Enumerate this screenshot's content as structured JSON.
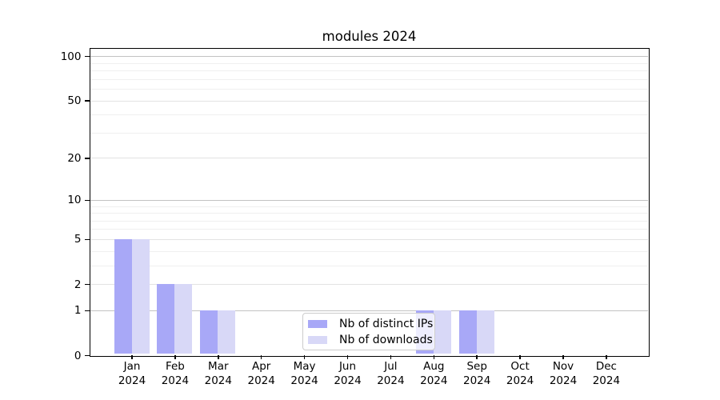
{
  "chart_data": {
    "type": "bar",
    "title": "modules 2024",
    "x_months": [
      "Jan",
      "Feb",
      "Mar",
      "Apr",
      "May",
      "Jun",
      "Jul",
      "Aug",
      "Sep",
      "Oct",
      "Nov",
      "Dec"
    ],
    "x_year": "2024",
    "series": [
      {
        "name": "Nb of distinct IPs",
        "color": "#a8a8f7",
        "values": [
          5,
          2,
          1,
          0,
          0,
          0,
          0,
          1,
          1,
          0,
          0,
          0
        ]
      },
      {
        "name": "Nb of downloads",
        "color": "#d8d8f7",
        "values": [
          5,
          2,
          1,
          0,
          0,
          0,
          0,
          1,
          1,
          0,
          0,
          0
        ]
      }
    ],
    "y_axis": {
      "scale": "log(1+x)",
      "ticks": [
        0,
        1,
        2,
        5,
        10,
        20,
        50,
        100
      ],
      "top_value": 112
    },
    "gridlines": {
      "major": [
        1,
        10,
        100
      ],
      "mid": [
        2,
        5,
        20,
        50
      ],
      "minor": [
        3,
        4,
        6,
        7,
        8,
        9,
        30,
        40,
        60,
        70,
        80,
        90
      ]
    },
    "legend": {
      "position": "lower center",
      "entries": [
        "Nb of distinct IPs",
        "Nb of downloads"
      ]
    },
    "grid": true
  },
  "colors": {
    "background": "#ffffff",
    "bar_distinct_ips": "#a8a8f7",
    "bar_downloads": "#d8d8f7",
    "grid_major": "#c2c2c2",
    "grid_mid": "#e3e3e3",
    "grid_minor": "#f0f0f0",
    "axis": "#000000",
    "legend_border": "#cccccc"
  }
}
